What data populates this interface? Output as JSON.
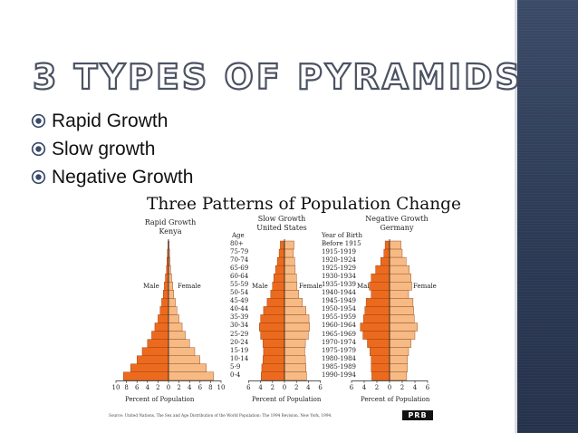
{
  "slide": {
    "title": "3 Types of Pyramids",
    "bullets": [
      "Rapid Growth",
      "Slow growth",
      "Negative Growth"
    ]
  },
  "colors": {
    "male_bar": "#ec6a1e",
    "female_bar": "#f6ba85",
    "bar_edge": "#8a3a10",
    "side_panel": "#2f3c58",
    "title_stroke": "#4b5263"
  },
  "icons": {
    "bullet": "circled-dot-icon"
  },
  "figure": {
    "title": "Three Patterns of Population Change",
    "source": "Source: United Nations, The Sex and Age Distribution of the World Population: The 1994 Revision. New York, 1994.",
    "logo": "PRB",
    "age_header": "Age",
    "birth_header": "Year of Birth",
    "ages": [
      "80+",
      "75-79",
      "70-74",
      "65-69",
      "60-64",
      "55-59",
      "50-54",
      "45-49",
      "40-44",
      "35-39",
      "30-34",
      "25-29",
      "20-24",
      "15-19",
      "10-14",
      "5-9",
      "0-4"
    ],
    "years": [
      "Before 1915",
      "1915-1919",
      "1920-1924",
      "1925-1929",
      "1930-1934",
      "1935-1939",
      "1940-1944",
      "1945-1949",
      "1950-1954",
      "1955-1959",
      "1960-1964",
      "1965-1969",
      "1970-1974",
      "1975-1979",
      "1980-1984",
      "1985-1989",
      "1990-1994"
    ],
    "pyramids": [
      {
        "name": "Rapid Growth",
        "country": "Kenya",
        "male_label": "Male",
        "female_label": "Female",
        "axis_ticks": [
          "10",
          "8",
          "6",
          "4",
          "2",
          "0",
          "2",
          "4",
          "6",
          "8",
          "10"
        ],
        "axis_title": "Percent of Population",
        "male": [
          0.1,
          0.2,
          0.3,
          0.4,
          0.6,
          0.8,
          1.0,
          1.3,
          1.6,
          2.0,
          2.6,
          3.2,
          4.0,
          5.0,
          6.0,
          7.2,
          8.6
        ],
        "female": [
          0.1,
          0.2,
          0.3,
          0.4,
          0.6,
          0.8,
          1.0,
          1.3,
          1.6,
          2.0,
          2.6,
          3.2,
          4.0,
          5.0,
          6.0,
          7.2,
          8.6
        ]
      },
      {
        "name": "Slow Growth",
        "country": "United States",
        "male_label": "Male",
        "female_label": "Female",
        "axis_ticks": [
          "6",
          "4",
          "2",
          "0",
          "2",
          "4",
          "6"
        ],
        "axis_title": "Percent of Population",
        "male": [
          0.7,
          0.9,
          1.2,
          1.5,
          1.8,
          2.0,
          2.3,
          2.9,
          3.5,
          4.0,
          4.2,
          4.0,
          3.6,
          3.5,
          3.6,
          3.8,
          3.9
        ],
        "female": [
          1.6,
          1.5,
          1.7,
          1.8,
          2.0,
          2.1,
          2.4,
          3.0,
          3.6,
          4.1,
          4.2,
          4.0,
          3.5,
          3.4,
          3.5,
          3.6,
          3.7
        ]
      },
      {
        "name": "Negative Growth",
        "country": "Germany",
        "male_label": "Male",
        "female_label": "Female",
        "axis_ticks": [
          "6",
          "4",
          "2",
          "0",
          "2",
          "4",
          "6"
        ],
        "axis_title": "Percent of Population",
        "male": [
          0.7,
          0.9,
          1.4,
          2.2,
          2.9,
          3.2,
          2.9,
          3.7,
          3.9,
          4.1,
          4.6,
          4.2,
          3.5,
          3.1,
          2.9,
          2.9,
          2.8
        ],
        "female": [
          1.8,
          2.0,
          2.6,
          3.1,
          3.4,
          3.5,
          3.0,
          3.7,
          3.8,
          3.9,
          4.4,
          4.0,
          3.4,
          3.0,
          2.8,
          2.8,
          2.7
        ]
      }
    ]
  }
}
